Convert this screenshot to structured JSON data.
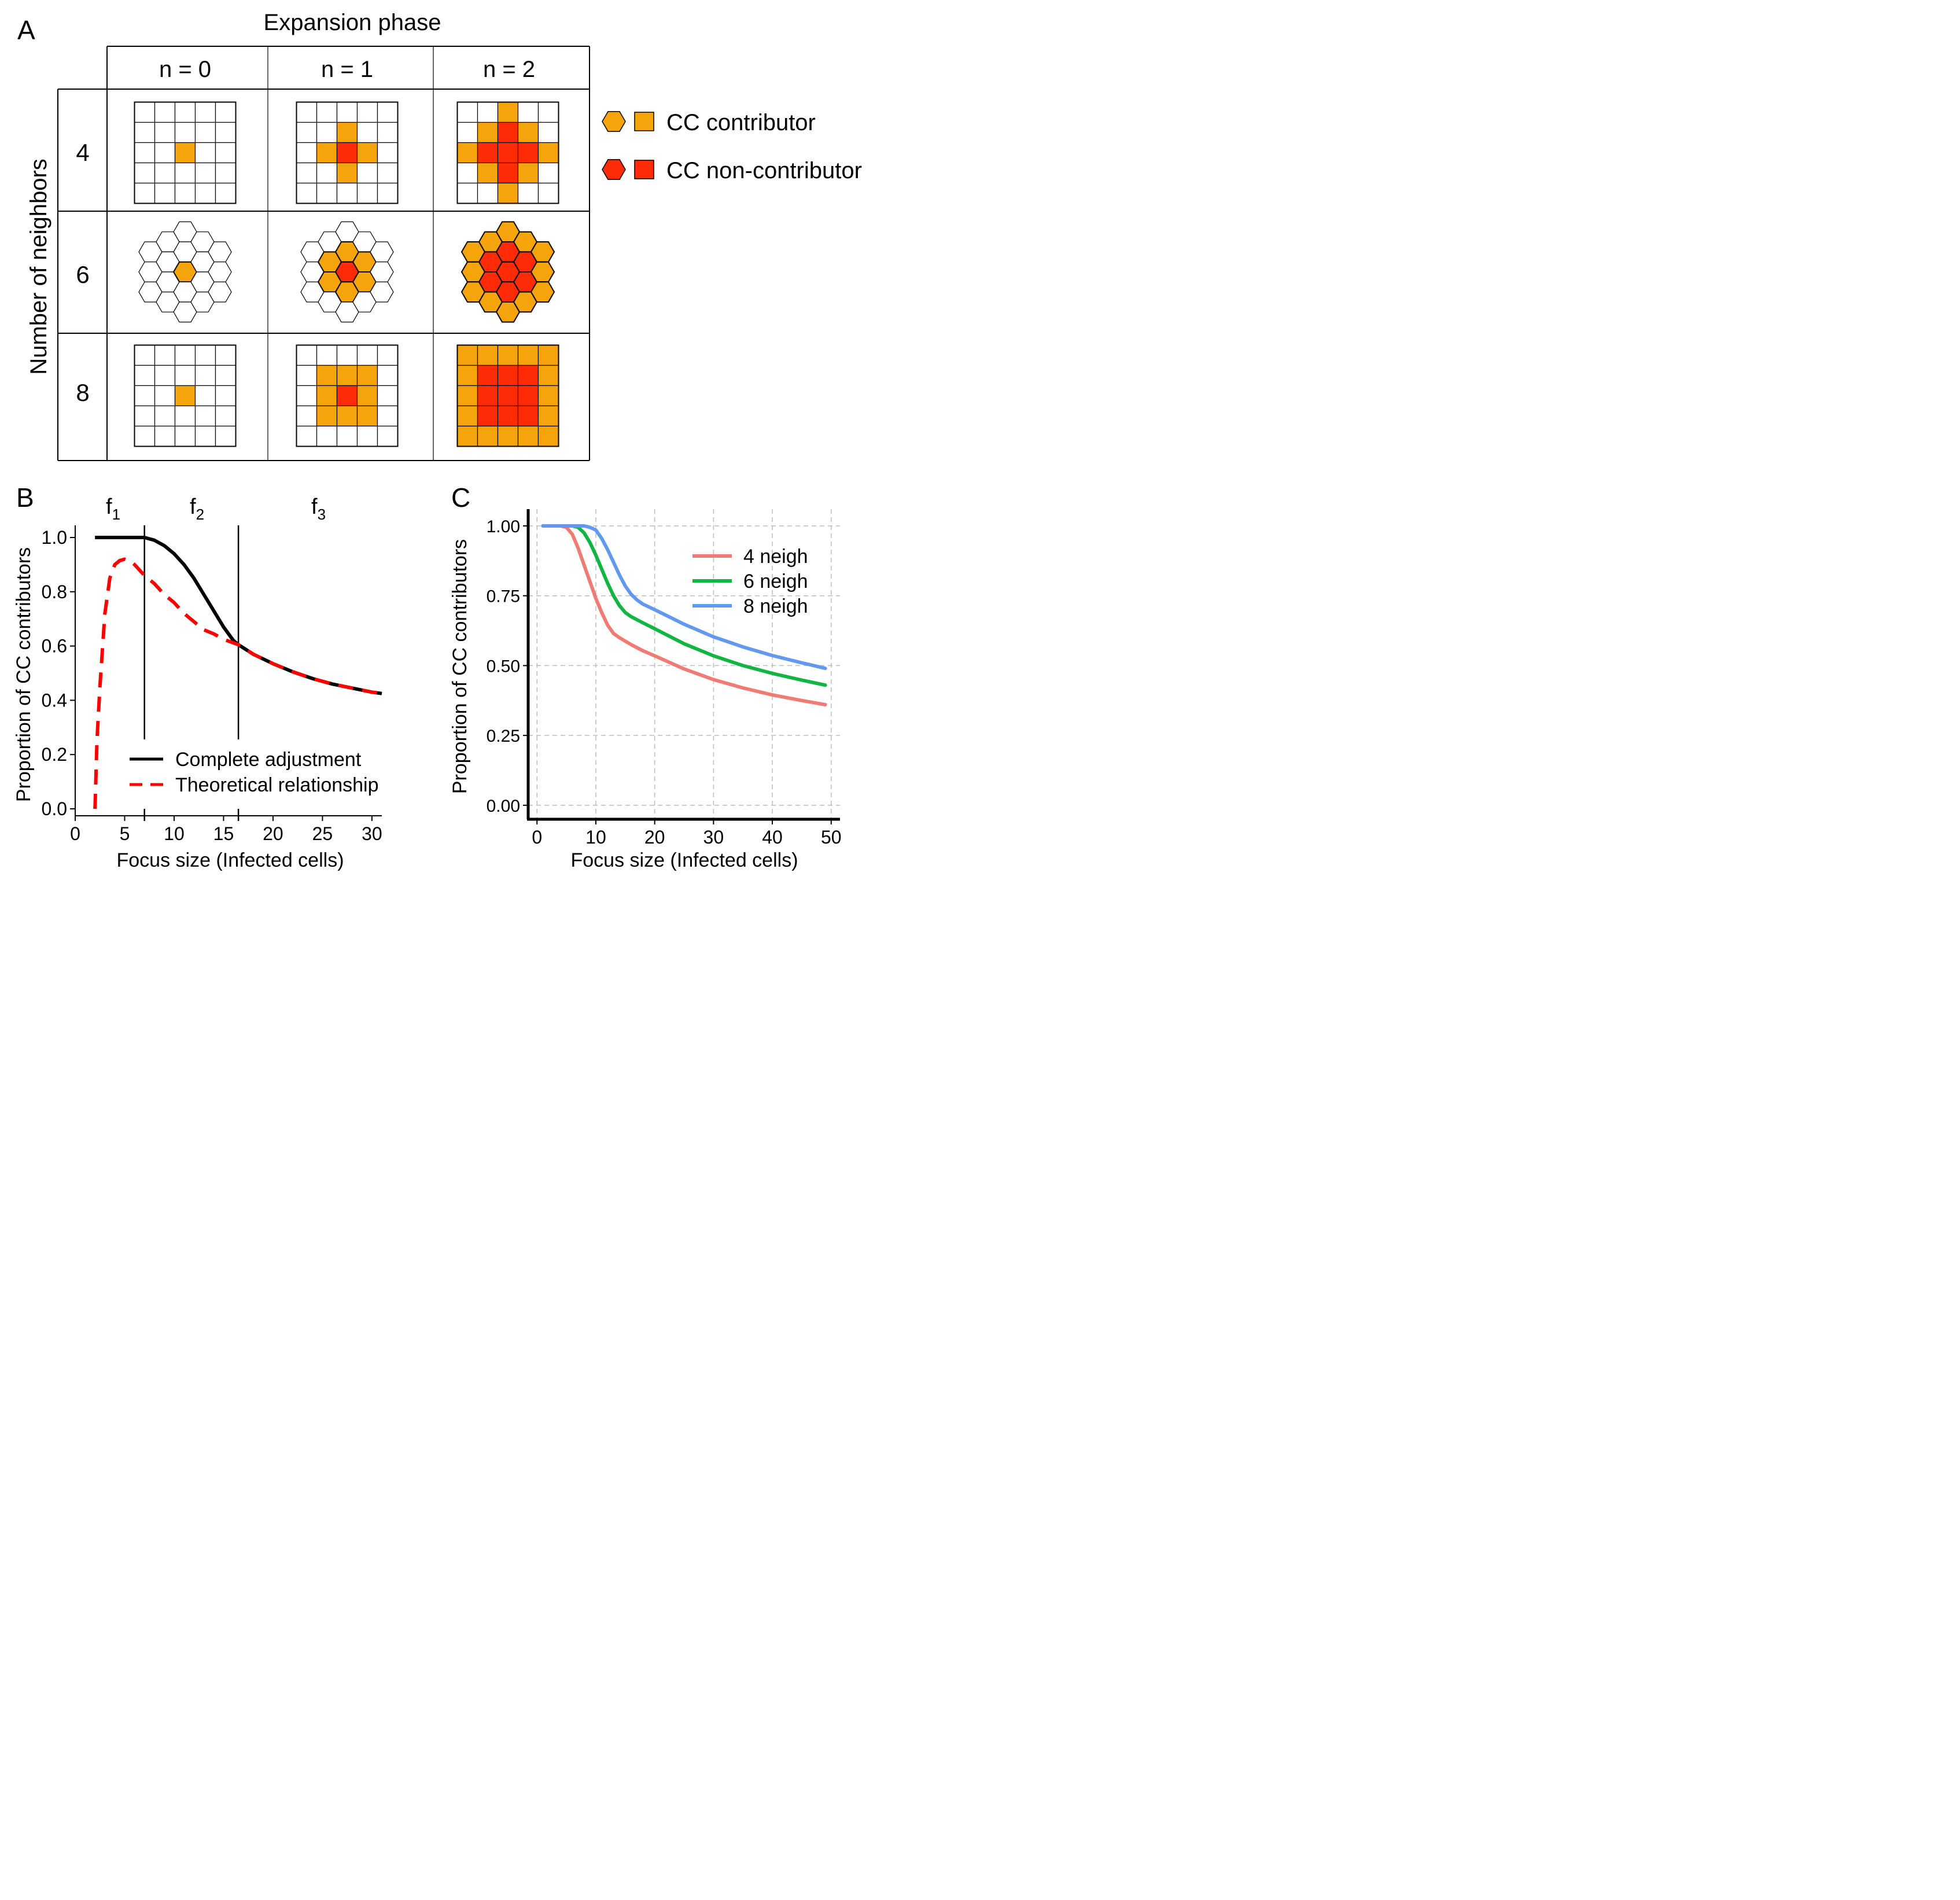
{
  "panelA": {
    "letter": "A",
    "title": "Expansion phase",
    "ylabel": "Number of neighbors",
    "columns": [
      "n = 0",
      "n = 1",
      "n = 2"
    ],
    "rows": [
      "4",
      "6",
      "8"
    ],
    "legend": {
      "contributor": "CC contributor",
      "noncontributor": "CC non-contributor"
    }
  },
  "colors": {
    "contributor": "#F5A40C",
    "noncontributor": "#FF2B06",
    "complete": "#000000",
    "theoretical": "#FF0000",
    "n4": "#F07B72",
    "n6": "#12B541",
    "n8": "#6199EE",
    "grid": "#BDBDBD"
  },
  "chart_data": [
    {
      "panel": "B",
      "type": "line",
      "title": "",
      "xlabel": "Focus size (Infected cells)",
      "ylabel": "Proportion of CC contributors",
      "xlim": [
        0,
        31
      ],
      "ylim": [
        0,
        1.0
      ],
      "xticks": [
        "0",
        "5",
        "10",
        "15",
        "20",
        "25",
        "30"
      ],
      "yticks": [
        "0.0",
        "0.2",
        "0.4",
        "0.6",
        "0.8",
        "1.0"
      ],
      "phase_labels": [
        {
          "base": "f",
          "sub": "1"
        },
        {
          "base": "f",
          "sub": "2"
        },
        {
          "base": "f",
          "sub": "3"
        }
      ],
      "phase_boundaries": [
        7,
        16.5
      ],
      "series": [
        {
          "name": "Complete adjustment",
          "style": "solid",
          "x": [
            2,
            3,
            4,
            5,
            6,
            7,
            8,
            9,
            10,
            11,
            12,
            13,
            14,
            15,
            16,
            16.5,
            18,
            20,
            22,
            24,
            26,
            28,
            30,
            31
          ],
          "y": [
            1.0,
            1.0,
            1.0,
            1.0,
            1.0,
            1.0,
            0.99,
            0.97,
            0.94,
            0.9,
            0.85,
            0.79,
            0.73,
            0.67,
            0.62,
            0.605,
            0.57,
            0.535,
            0.505,
            0.48,
            0.46,
            0.445,
            0.43,
            0.425
          ]
        },
        {
          "name": "Theoretical relationship",
          "style": "dashed",
          "x": [
            2,
            2.2,
            2.5,
            3,
            3.5,
            4,
            4.5,
            5,
            5.5,
            6,
            7,
            8,
            9,
            10,
            11,
            12,
            13,
            14,
            15,
            16.5,
            18,
            20,
            22,
            24,
            26,
            28,
            30,
            31
          ],
          "y": [
            0.0,
            0.25,
            0.45,
            0.72,
            0.85,
            0.9,
            0.915,
            0.92,
            0.915,
            0.9,
            0.86,
            0.83,
            0.79,
            0.76,
            0.72,
            0.69,
            0.66,
            0.645,
            0.625,
            0.605,
            0.57,
            0.535,
            0.505,
            0.48,
            0.46,
            0.445,
            0.43,
            0.425
          ]
        }
      ]
    },
    {
      "panel": "C",
      "type": "line",
      "title": "",
      "xlabel": "Focus size (Infected cells)",
      "ylabel": "Proportion of CC contributors",
      "xlim": [
        -1.5,
        51.5
      ],
      "ylim": [
        -0.05,
        1.06
      ],
      "xticks": [
        "0",
        "10",
        "20",
        "30",
        "40",
        "50"
      ],
      "yticks": [
        "0.00",
        "0.25",
        "0.50",
        "0.75",
        "1.00"
      ],
      "grid": true,
      "series": [
        {
          "name": "4 neigh",
          "x": [
            1,
            4,
            5,
            6,
            7,
            8,
            9,
            10,
            11,
            12,
            13,
            14,
            16,
            18,
            20,
            25,
            30,
            35,
            40,
            45,
            49
          ],
          "y": [
            1.0,
            1.0,
            0.995,
            0.97,
            0.92,
            0.86,
            0.8,
            0.74,
            0.69,
            0.645,
            0.615,
            0.6,
            0.575,
            0.553,
            0.535,
            0.488,
            0.45,
            0.42,
            0.395,
            0.375,
            0.36
          ]
        },
        {
          "name": "6 neigh",
          "x": [
            1,
            6,
            7,
            8,
            9,
            10,
            11,
            12,
            13,
            14,
            15,
            16,
            18,
            20,
            25,
            30,
            35,
            40,
            45,
            49
          ],
          "y": [
            1.0,
            1.0,
            0.995,
            0.975,
            0.94,
            0.895,
            0.845,
            0.795,
            0.75,
            0.715,
            0.69,
            0.675,
            0.653,
            0.632,
            0.578,
            0.535,
            0.5,
            0.472,
            0.448,
            0.43
          ]
        },
        {
          "name": "8 neigh",
          "x": [
            1,
            8,
            9,
            10,
            11,
            12,
            13,
            14,
            15,
            16,
            17,
            18,
            20,
            25,
            30,
            35,
            40,
            45,
            49
          ],
          "y": [
            1.0,
            1.0,
            0.995,
            0.985,
            0.955,
            0.915,
            0.87,
            0.825,
            0.785,
            0.755,
            0.735,
            0.72,
            0.7,
            0.648,
            0.603,
            0.567,
            0.536,
            0.51,
            0.49
          ]
        }
      ]
    }
  ]
}
